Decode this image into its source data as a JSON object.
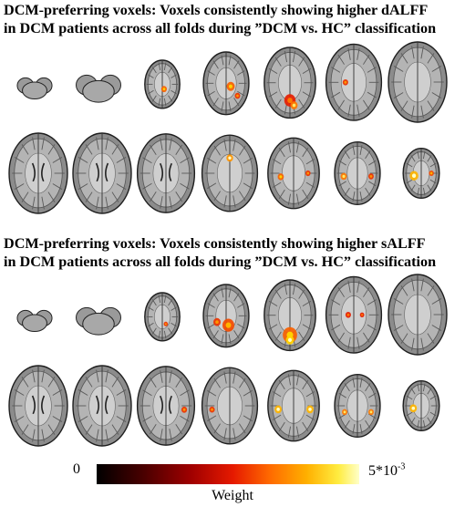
{
  "panels": [
    {
      "title_line1": "DCM-preferring voxels: Voxels consistently showing higher dALFF",
      "title_line2": "in DCM patients across all folds during ”DCM vs. HC” classification",
      "rows": [
        {
          "slices": [
            {
              "size": 0.35,
              "blobs": []
            },
            {
              "size": 0.45,
              "blobs": []
            },
            {
              "size": 0.6,
              "blobs": [
                {
                  "dx": 0.05,
                  "dy": 0.1,
                  "r": 0.08,
                  "level": 0.7
                }
              ]
            },
            {
              "size": 0.78,
              "blobs": [
                {
                  "dx": 0.1,
                  "dy": 0.05,
                  "r": 0.09,
                  "level": 0.7
                },
                {
                  "dx": 0.25,
                  "dy": 0.2,
                  "r": 0.06,
                  "level": 0.6
                }
              ]
            },
            {
              "size": 0.88,
              "blobs": [
                {
                  "dx": 0.0,
                  "dy": 0.25,
                  "r": 0.11,
                  "level": 0.55
                },
                {
                  "dx": 0.08,
                  "dy": 0.32,
                  "r": 0.07,
                  "level": 0.75
                }
              ]
            },
            {
              "size": 0.95,
              "blobs": [
                {
                  "dx": -0.15,
                  "dy": 0.0,
                  "r": 0.05,
                  "level": 0.6
                }
              ]
            },
            {
              "size": 1.0,
              "blobs": []
            }
          ]
        },
        {
          "slices": [
            {
              "size": 1.0,
              "blobs": []
            },
            {
              "size": 1.0,
              "blobs": []
            },
            {
              "size": 0.98,
              "blobs": []
            },
            {
              "size": 0.95,
              "blobs": [
                {
                  "dx": 0.0,
                  "dy": -0.2,
                  "r": 0.06,
                  "level": 0.8
                }
              ]
            },
            {
              "size": 0.88,
              "blobs": [
                {
                  "dx": -0.25,
                  "dy": 0.05,
                  "r": 0.06,
                  "level": 0.7
                },
                {
                  "dx": 0.28,
                  "dy": 0.0,
                  "r": 0.05,
                  "level": 0.6
                }
              ]
            },
            {
              "size": 0.78,
              "blobs": [
                {
                  "dx": -0.3,
                  "dy": 0.05,
                  "r": 0.07,
                  "level": 0.75
                },
                {
                  "dx": 0.3,
                  "dy": 0.05,
                  "r": 0.06,
                  "level": 0.6
                }
              ]
            },
            {
              "size": 0.62,
              "blobs": [
                {
                  "dx": -0.2,
                  "dy": 0.05,
                  "r": 0.12,
                  "level": 0.85
                },
                {
                  "dx": 0.28,
                  "dy": 0.0,
                  "r": 0.07,
                  "level": 0.65
                }
              ]
            }
          ]
        }
      ]
    },
    {
      "title_line1": "DCM-preferring voxels: Voxels consistently showing higher sALFF",
      "title_line2": "in DCM patients across all folds during ”DCM vs. HC” classification",
      "rows": [
        {
          "slices": [
            {
              "size": 0.35,
              "blobs": []
            },
            {
              "size": 0.45,
              "blobs": []
            },
            {
              "size": 0.6,
              "blobs": [
                {
                  "dx": 0.1,
                  "dy": 0.15,
                  "r": 0.06,
                  "level": 0.6
                }
              ]
            },
            {
              "size": 0.78,
              "blobs": [
                {
                  "dx": 0.05,
                  "dy": 0.15,
                  "r": 0.13,
                  "level": 0.65
                },
                {
                  "dx": -0.2,
                  "dy": 0.1,
                  "r": 0.08,
                  "level": 0.6
                }
              ]
            },
            {
              "size": 0.88,
              "blobs": [
                {
                  "dx": 0.0,
                  "dy": 0.28,
                  "r": 0.14,
                  "level": 0.7
                },
                {
                  "dx": 0.0,
                  "dy": 0.35,
                  "r": 0.08,
                  "level": 0.9
                }
              ]
            },
            {
              "size": 0.95,
              "blobs": [
                {
                  "dx": -0.1,
                  "dy": 0.0,
                  "r": 0.05,
                  "level": 0.55
                },
                {
                  "dx": 0.15,
                  "dy": 0.0,
                  "r": 0.04,
                  "level": 0.55
                }
              ]
            },
            {
              "size": 1.0,
              "blobs": []
            }
          ]
        },
        {
          "slices": [
            {
              "size": 1.0,
              "blobs": []
            },
            {
              "size": 1.0,
              "blobs": []
            },
            {
              "size": 0.98,
              "blobs": [
                {
                  "dx": 0.32,
                  "dy": 0.05,
                  "r": 0.05,
                  "level": 0.6
                }
              ]
            },
            {
              "size": 0.95,
              "blobs": [
                {
                  "dx": -0.32,
                  "dy": 0.05,
                  "r": 0.05,
                  "level": 0.6
                }
              ]
            },
            {
              "size": 0.88,
              "blobs": [
                {
                  "dx": -0.3,
                  "dy": 0.05,
                  "r": 0.07,
                  "level": 0.85
                },
                {
                  "dx": 0.32,
                  "dy": 0.05,
                  "r": 0.07,
                  "level": 0.85
                }
              ]
            },
            {
              "size": 0.78,
              "blobs": [
                {
                  "dx": -0.28,
                  "dy": 0.1,
                  "r": 0.06,
                  "level": 0.75
                },
                {
                  "dx": 0.3,
                  "dy": 0.1,
                  "r": 0.06,
                  "level": 0.75
                }
              ]
            },
            {
              "size": 0.62,
              "blobs": [
                {
                  "dx": -0.22,
                  "dy": 0.05,
                  "r": 0.1,
                  "level": 0.85
                }
              ]
            }
          ]
        }
      ]
    }
  ],
  "colorbar": {
    "min_label": "0",
    "max_base": "5*10",
    "max_exponent": "-3",
    "label": "Weight"
  }
}
